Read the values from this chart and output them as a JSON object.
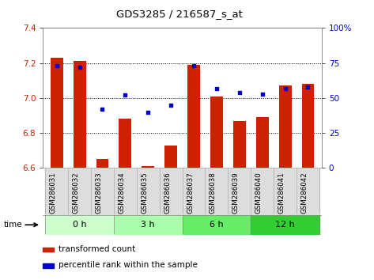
{
  "title": "GDS3285 / 216587_s_at",
  "samples": [
    "GSM286031",
    "GSM286032",
    "GSM286033",
    "GSM286034",
    "GSM286035",
    "GSM286036",
    "GSM286037",
    "GSM286038",
    "GSM286039",
    "GSM286040",
    "GSM286041",
    "GSM286042"
  ],
  "bar_values": [
    7.23,
    7.21,
    6.65,
    6.88,
    6.61,
    6.73,
    7.19,
    7.01,
    6.87,
    6.89,
    7.07,
    7.08
  ],
  "percentile_values": [
    73,
    72,
    42,
    52,
    40,
    45,
    73,
    57,
    54,
    53,
    57,
    58
  ],
  "ylim": [
    6.6,
    7.4
  ],
  "yticks_left": [
    6.6,
    6.8,
    7.0,
    7.2,
    7.4
  ],
  "yticks_right": [
    0,
    25,
    50,
    75,
    100
  ],
  "bar_color": "#cc2200",
  "dot_color": "#0000cc",
  "background_color": "#ffffff",
  "grid_color": "#000000",
  "time_groups": [
    {
      "label": "0 h",
      "indices": [
        0,
        1,
        2
      ],
      "color": "#ccffcc"
    },
    {
      "label": "3 h",
      "indices": [
        3,
        4,
        5
      ],
      "color": "#aaffaa"
    },
    {
      "label": "6 h",
      "indices": [
        6,
        7,
        8
      ],
      "color": "#66ee66"
    },
    {
      "label": "12 h",
      "indices": [
        9,
        10,
        11
      ],
      "color": "#33cc33"
    }
  ],
  "legend_bar_label": "transformed count",
  "legend_dot_label": "percentile rank within the sample",
  "bar_width": 0.55
}
